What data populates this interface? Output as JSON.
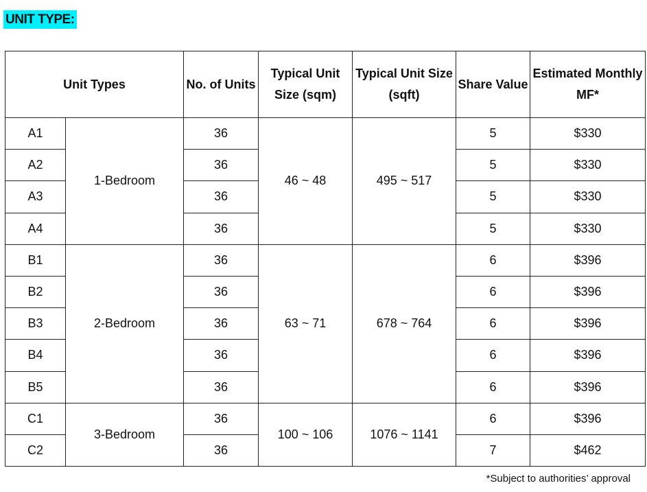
{
  "title": "UNIT TYPE:",
  "headers": {
    "unit_types": "Unit Types",
    "no_of_units": "No. of Units",
    "size_sqm": "Typical Unit Size (sqm)",
    "size_sqft": "Typical Unit Size (sqft)",
    "share_value": "Share Value",
    "monthly_mf": "Estimated Monthly MF*"
  },
  "groups": [
    {
      "type": "1-Bedroom",
      "sqm": "46 ~ 48",
      "sqft": "495 ~ 517",
      "rows": [
        {
          "code": "A1",
          "units": "36",
          "share": "5",
          "mf": "$330"
        },
        {
          "code": "A2",
          "units": "36",
          "share": "5",
          "mf": "$330"
        },
        {
          "code": "A3",
          "units": "36",
          "share": "5",
          "mf": "$330"
        },
        {
          "code": "A4",
          "units": "36",
          "share": "5",
          "mf": "$330"
        }
      ]
    },
    {
      "type": "2-Bedroom",
      "sqm": "63 ~ 71",
      "sqft": "678 ~ 764",
      "rows": [
        {
          "code": "B1",
          "units": "36",
          "share": "6",
          "mf": "$396"
        },
        {
          "code": "B2",
          "units": "36",
          "share": "6",
          "mf": "$396"
        },
        {
          "code": "B3",
          "units": "36",
          "share": "6",
          "mf": "$396"
        },
        {
          "code": "B4",
          "units": "36",
          "share": "6",
          "mf": "$396"
        },
        {
          "code": "B5",
          "units": "36",
          "share": "6",
          "mf": "$396"
        }
      ]
    },
    {
      "type": "3-Bedroom",
      "sqm": "100 ~ 106",
      "sqft": "1076 ~ 1141",
      "rows": [
        {
          "code": "C1",
          "units": "36",
          "share": "6",
          "mf": "$396"
        },
        {
          "code": "C2",
          "units": "36",
          "share": "7",
          "mf": "$462"
        }
      ]
    }
  ],
  "footnote": "*Subject to authorities’ approval",
  "colors": {
    "title_highlight": "#00f0ff"
  }
}
